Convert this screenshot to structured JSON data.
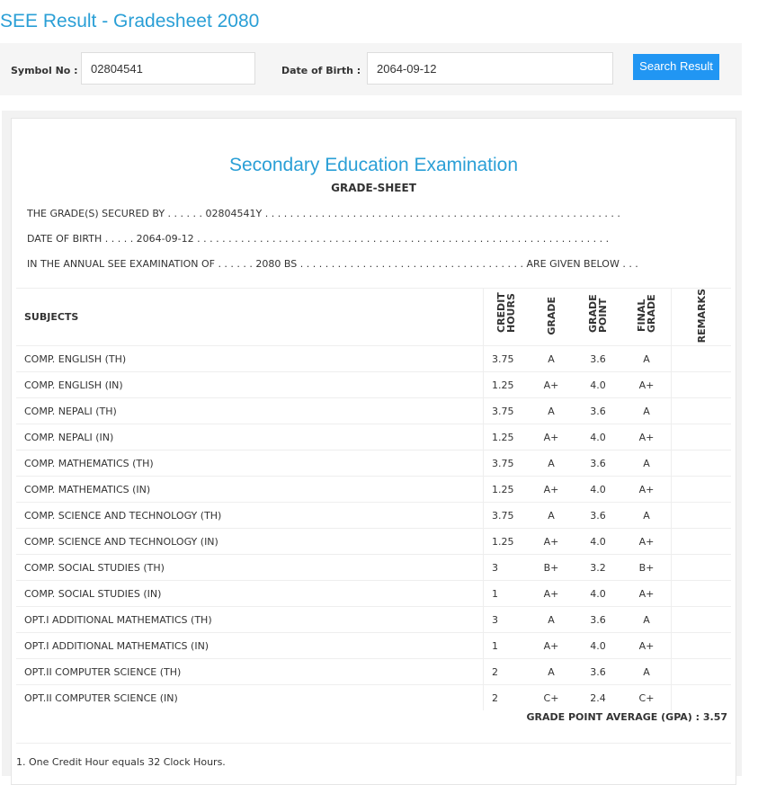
{
  "header": {
    "title": "SEE Result - Gradesheet 2080"
  },
  "search": {
    "symbol_label": "Symbol No :",
    "symbol_value": "02804541",
    "dob_label": "Date of Birth :",
    "dob_value": "2064-09-12",
    "button": "Search Result"
  },
  "sheet": {
    "title": "Secondary Education Examination",
    "subtitle": "GRADE-SHEET",
    "lines": [
      "THE GRADE(S) SECURED BY . . . . . . 02804541Y . . . . . . . . . . . . . . . . . . . . . . . . . . . . . . . . . . . . . . . . . . . . . . . . . . . . . . . . .",
      "DATE OF BIRTH . . . . . 2064-09-12 . . . . . . . . . . . . . . . . . . . . . . . . . . . . . . . . . . . . . . . . . . . . . . . . . . . . . . . . . . . . . . . . . .",
      "IN THE ANNUAL SEE EXAMINATION OF . . . . . . 2080 BS . . . . . . . . . . . . . . . . . . . . . . . . . . . . . . . . . . . . ARE GIVEN BELOW . . ."
    ]
  },
  "table": {
    "headers": [
      "SUBJECTS",
      "CREDIT HOURS",
      "GRADE",
      "GRADE POINT",
      "FINAL GRADE",
      "REMARKS"
    ],
    "rows": [
      [
        "COMP. ENGLISH (TH)",
        "3.75",
        "A",
        "3.6",
        "A"
      ],
      [
        "COMP. ENGLISH (IN)",
        "1.25",
        "A+",
        "4.0",
        "A+"
      ],
      [
        "COMP. NEPALI (TH)",
        "3.75",
        "A",
        "3.6",
        "A"
      ],
      [
        "COMP. NEPALI (IN)",
        "1.25",
        "A+",
        "4.0",
        "A+"
      ],
      [
        "COMP. MATHEMATICS (TH)",
        "3.75",
        "A",
        "3.6",
        "A"
      ],
      [
        "COMP. MATHEMATICS (IN)",
        "1.25",
        "A+",
        "4.0",
        "A+"
      ],
      [
        "COMP. SCIENCE AND TECHNOLOGY (TH)",
        "3.75",
        "A",
        "3.6",
        "A"
      ],
      [
        "COMP. SCIENCE AND TECHNOLOGY (IN)",
        "1.25",
        "A+",
        "4.0",
        "A+"
      ],
      [
        "COMP. SOCIAL STUDIES (TH)",
        "3",
        "B+",
        "3.2",
        "B+"
      ],
      [
        "COMP. SOCIAL STUDIES (IN)",
        "1",
        "A+",
        "4.0",
        "A+"
      ],
      [
        "OPT.I ADDITIONAL MATHEMATICS (TH)",
        "3",
        "A",
        "3.6",
        "A"
      ],
      [
        "OPT.I ADDITIONAL MATHEMATICS (IN)",
        "1",
        "A+",
        "4.0",
        "A+"
      ],
      [
        "OPT.II COMPUTER SCIENCE (TH)",
        "2",
        "A",
        "3.6",
        "A"
      ],
      [
        "OPT.II COMPUTER SCIENCE (IN)",
        "2",
        "C+",
        "2.4",
        "C+"
      ]
    ]
  },
  "gpa": "GRADE POINT AVERAGE (GPA) : 3.57",
  "notes": [
    "1. One Credit Hour equals 32 Clock Hours."
  ]
}
